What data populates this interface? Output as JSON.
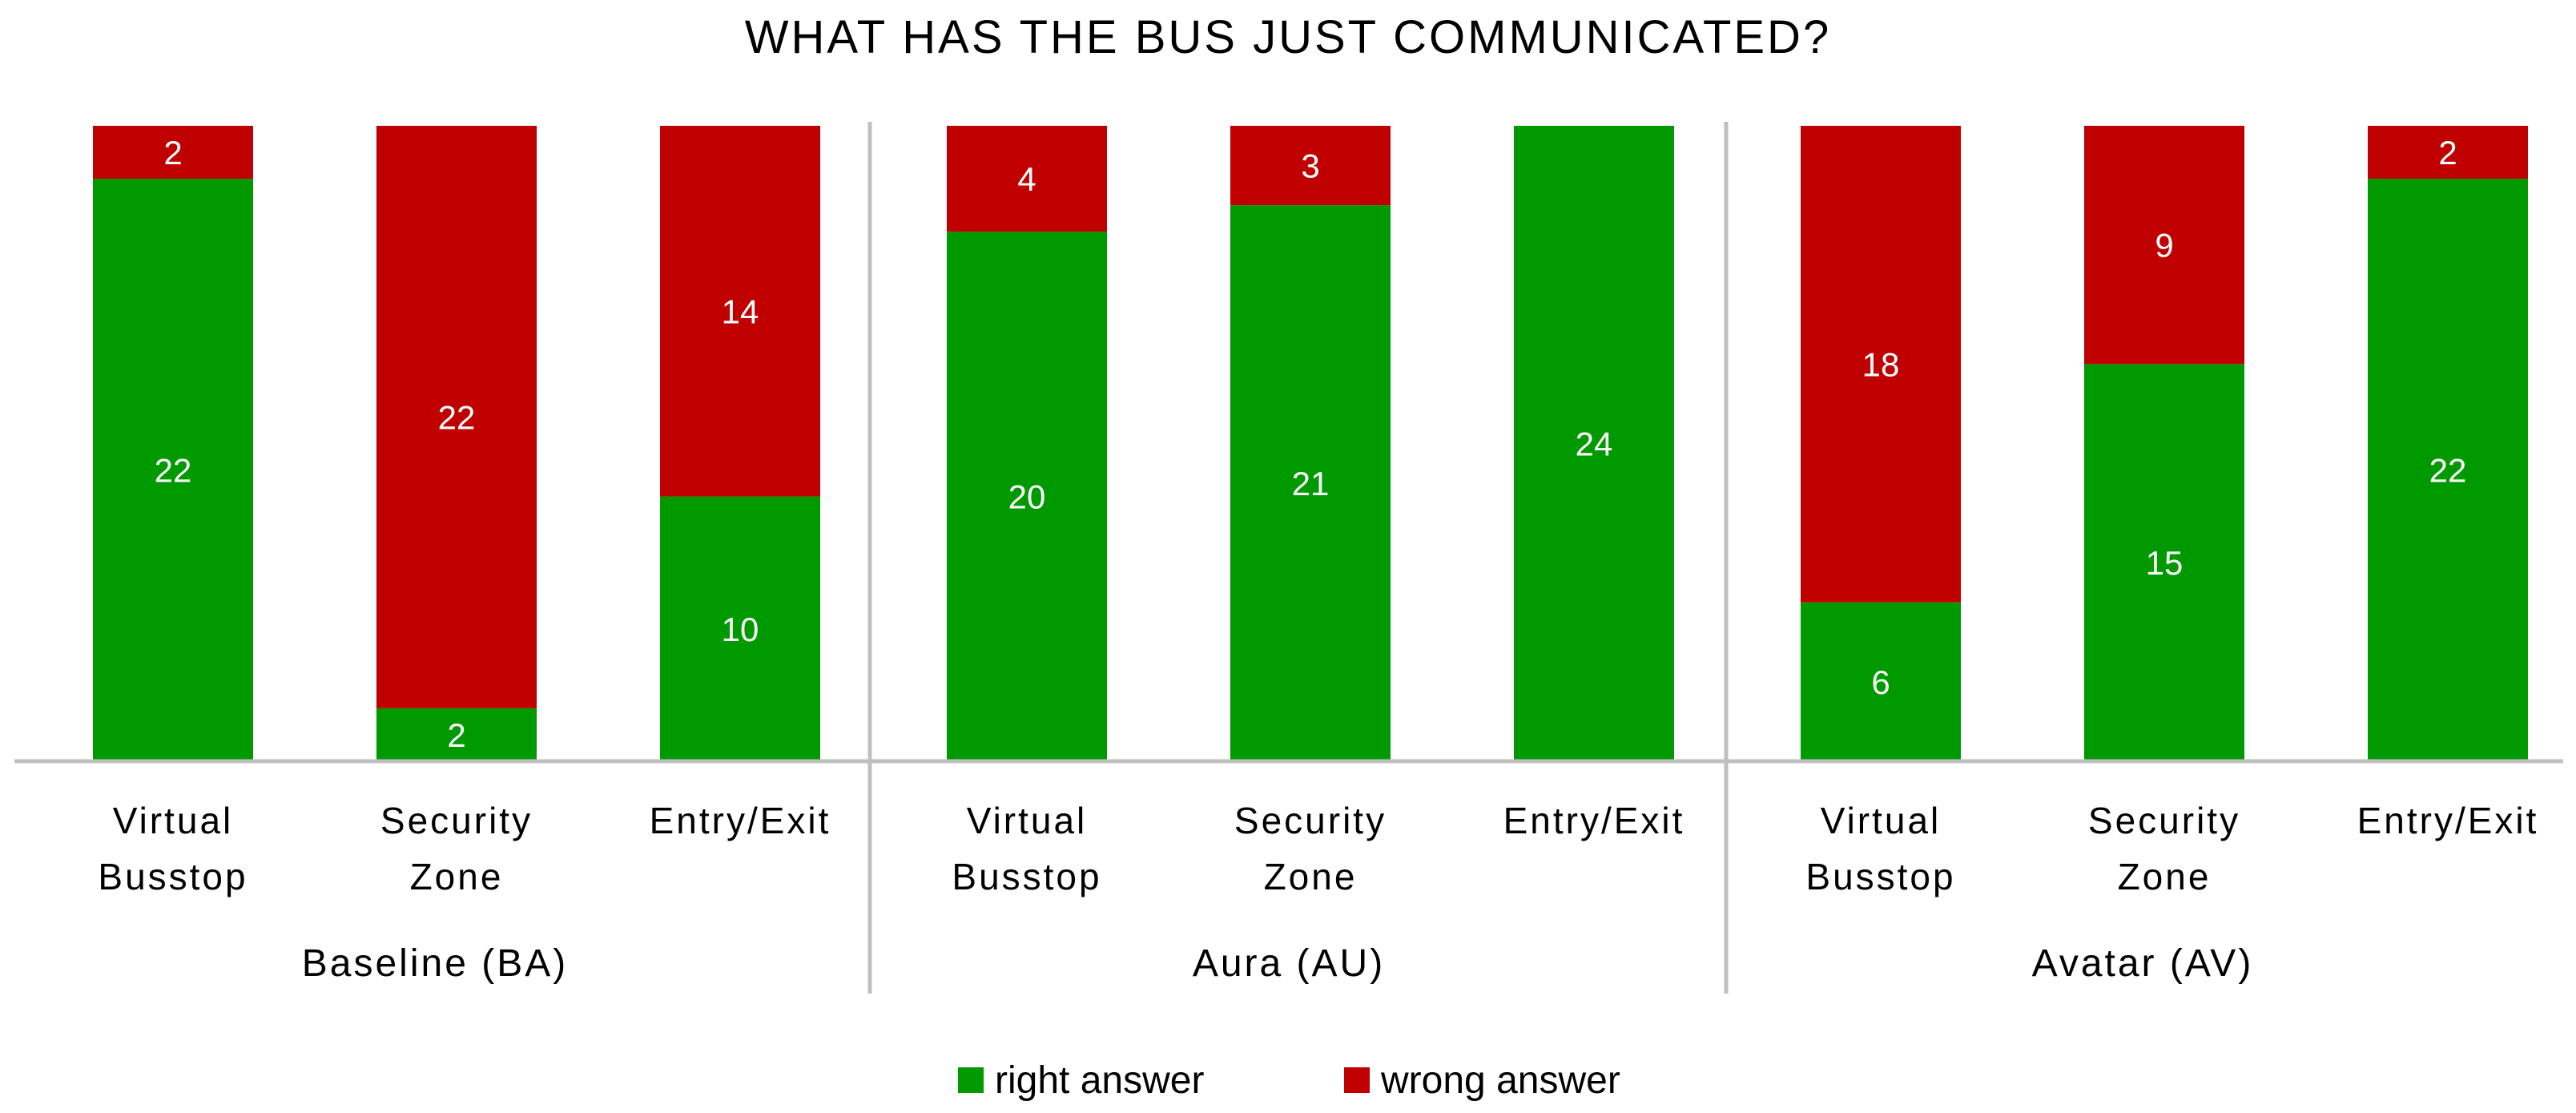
{
  "chart_data": {
    "type": "bar",
    "stacked": true,
    "title": "WHAT HAS THE BUS JUST COMMUNICATED?",
    "xlabel": "",
    "ylabel": "",
    "ylim": [
      0,
      24
    ],
    "grid": false,
    "legend_position": "bottom",
    "groups": [
      {
        "name": "Baseline (BA)",
        "categories": [
          [
            "Virtual",
            "Busstop"
          ],
          [
            "Security",
            "Zone"
          ],
          [
            "Entry/Exit"
          ]
        ]
      },
      {
        "name": "Aura (AU)",
        "categories": [
          [
            "Virtual",
            "Busstop"
          ],
          [
            "Security",
            "Zone"
          ],
          [
            "Entry/Exit"
          ]
        ]
      },
      {
        "name": "Avatar (AV)",
        "categories": [
          [
            "Virtual",
            "Busstop"
          ],
          [
            "Security",
            "Zone"
          ],
          [
            "Entry/Exit"
          ]
        ]
      }
    ],
    "series": [
      {
        "name": "right answer",
        "color": "#009900",
        "values": [
          22,
          2,
          10,
          20,
          21,
          24,
          6,
          15,
          22
        ]
      },
      {
        "name": "wrong answer",
        "color": "#C00000",
        "values": [
          2,
          22,
          14,
          4,
          3,
          0,
          18,
          9,
          2
        ]
      }
    ]
  }
}
